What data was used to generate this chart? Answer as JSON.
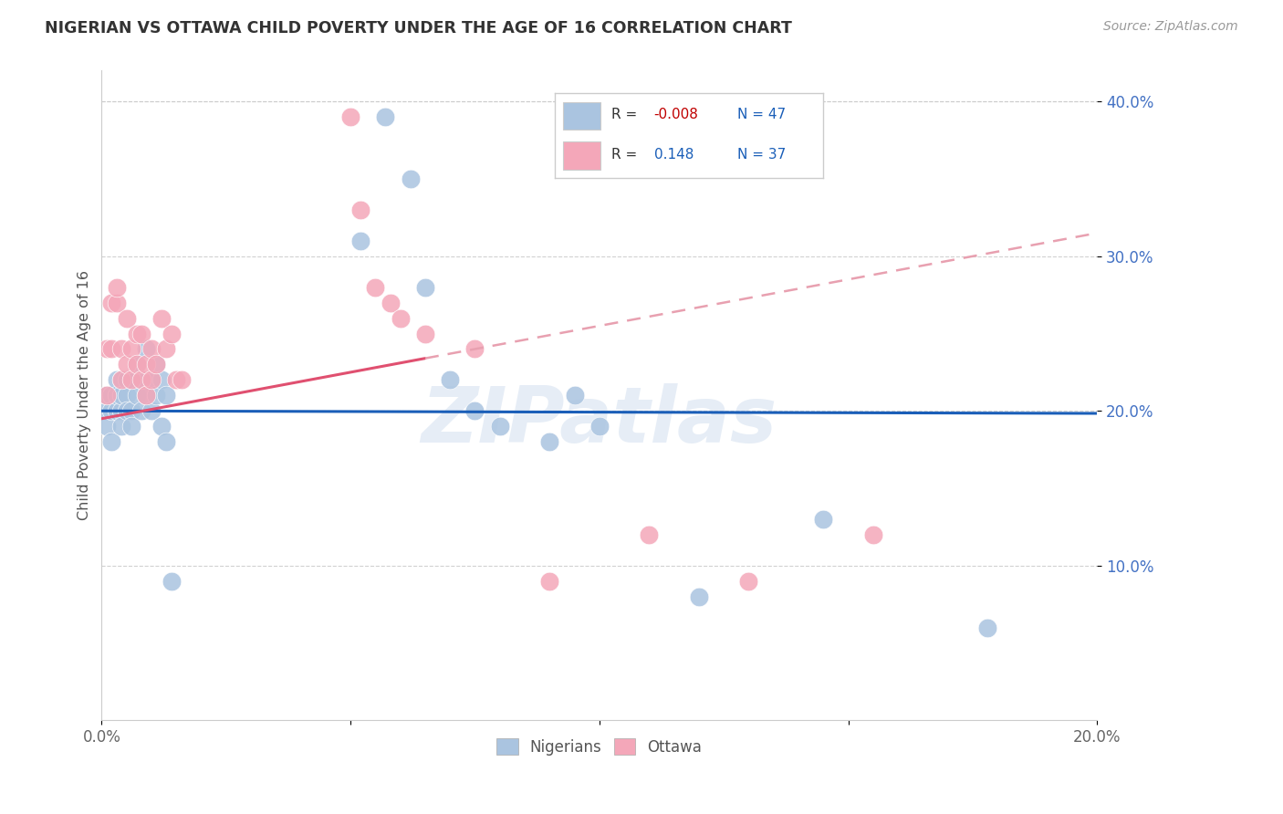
{
  "title": "NIGERIAN VS OTTAWA CHILD POVERTY UNDER THE AGE OF 16 CORRELATION CHART",
  "source": "Source: ZipAtlas.com",
  "ylabel": "Child Poverty Under the Age of 16",
  "xlim": [
    0.0,
    0.2
  ],
  "ylim": [
    0.0,
    0.42
  ],
  "xticks": [
    0.0,
    0.05,
    0.1,
    0.15,
    0.2
  ],
  "xtick_labels": [
    "0.0%",
    "",
    "",
    "",
    "20.0%"
  ],
  "yticks": [
    0.1,
    0.2,
    0.3,
    0.4
  ],
  "ytick_labels": [
    "10.0%",
    "20.0%",
    "30.0%",
    "40.0%"
  ],
  "legend_R_nigerian": "-0.008",
  "legend_N_nigerian": "47",
  "legend_R_ottawa": "0.148",
  "legend_N_ottawa": "37",
  "nigerian_color": "#aac4e0",
  "ottawa_color": "#f4a7b9",
  "nigerian_line_color": "#1a5eb8",
  "ottawa_line_solid_color": "#e05070",
  "ottawa_line_dash_color": "#e8a0b0",
  "watermark": "ZIPatlas",
  "nig_line_slope": -0.008,
  "nig_line_intercept": 0.2,
  "ott_line_slope": 0.6,
  "ott_line_intercept": 0.195,
  "nigerian_x": [
    0.001,
    0.001,
    0.001,
    0.002,
    0.002,
    0.002,
    0.003,
    0.003,
    0.003,
    0.004,
    0.004,
    0.004,
    0.004,
    0.005,
    0.005,
    0.005,
    0.006,
    0.006,
    0.006,
    0.007,
    0.007,
    0.008,
    0.008,
    0.009,
    0.009,
    0.01,
    0.01,
    0.011,
    0.011,
    0.012,
    0.012,
    0.013,
    0.013,
    0.014,
    0.052,
    0.057,
    0.062,
    0.065,
    0.07,
    0.075,
    0.08,
    0.09,
    0.095,
    0.1,
    0.12,
    0.145,
    0.178
  ],
  "nigerian_y": [
    0.2,
    0.19,
    0.21,
    0.18,
    0.21,
    0.2,
    0.22,
    0.2,
    0.21,
    0.22,
    0.2,
    0.21,
    0.19,
    0.22,
    0.21,
    0.2,
    0.22,
    0.2,
    0.19,
    0.23,
    0.21,
    0.22,
    0.2,
    0.24,
    0.21,
    0.22,
    0.2,
    0.23,
    0.21,
    0.22,
    0.19,
    0.21,
    0.18,
    0.09,
    0.31,
    0.39,
    0.35,
    0.28,
    0.22,
    0.2,
    0.19,
    0.18,
    0.21,
    0.19,
    0.08,
    0.13,
    0.06
  ],
  "ottawa_x": [
    0.001,
    0.001,
    0.002,
    0.002,
    0.003,
    0.003,
    0.004,
    0.004,
    0.005,
    0.005,
    0.006,
    0.006,
    0.007,
    0.007,
    0.008,
    0.008,
    0.009,
    0.009,
    0.01,
    0.01,
    0.011,
    0.012,
    0.013,
    0.014,
    0.015,
    0.016,
    0.05,
    0.052,
    0.055,
    0.058,
    0.06,
    0.065,
    0.075,
    0.09,
    0.11,
    0.13,
    0.155
  ],
  "ottawa_y": [
    0.21,
    0.24,
    0.27,
    0.24,
    0.27,
    0.28,
    0.24,
    0.22,
    0.26,
    0.23,
    0.24,
    0.22,
    0.25,
    0.23,
    0.25,
    0.22,
    0.23,
    0.21,
    0.24,
    0.22,
    0.23,
    0.26,
    0.24,
    0.25,
    0.22,
    0.22,
    0.39,
    0.33,
    0.28,
    0.27,
    0.26,
    0.25,
    0.24,
    0.09,
    0.12,
    0.09,
    0.12
  ]
}
